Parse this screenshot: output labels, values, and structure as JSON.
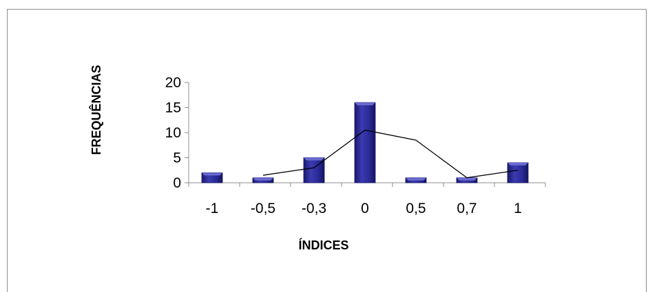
{
  "chart_data": {
    "type": "bar",
    "categories": [
      "-1",
      "-0,5",
      "-0,3",
      "0",
      "0,5",
      "0,7",
      "1"
    ],
    "series": [
      {
        "type": "bar",
        "values": [
          2,
          1,
          5,
          16,
          1,
          1,
          4
        ]
      },
      {
        "type": "line",
        "values": [
          null,
          1.5,
          3,
          10.5,
          8.5,
          1,
          2.5
        ]
      }
    ],
    "xlabel": "ÍNDICES",
    "ylabel": "FREQUÊNCIAS",
    "ylim": [
      0,
      20
    ],
    "yticks": [
      "0",
      "5",
      "10",
      "15",
      "20"
    ],
    "colors": {
      "bar": "#2b2b95",
      "bar_dark": "#15156a",
      "bar_light": "#6a6ad0",
      "line": "#000000",
      "axis": "#8c8c8c"
    },
    "grid": false,
    "legend": "none"
  }
}
